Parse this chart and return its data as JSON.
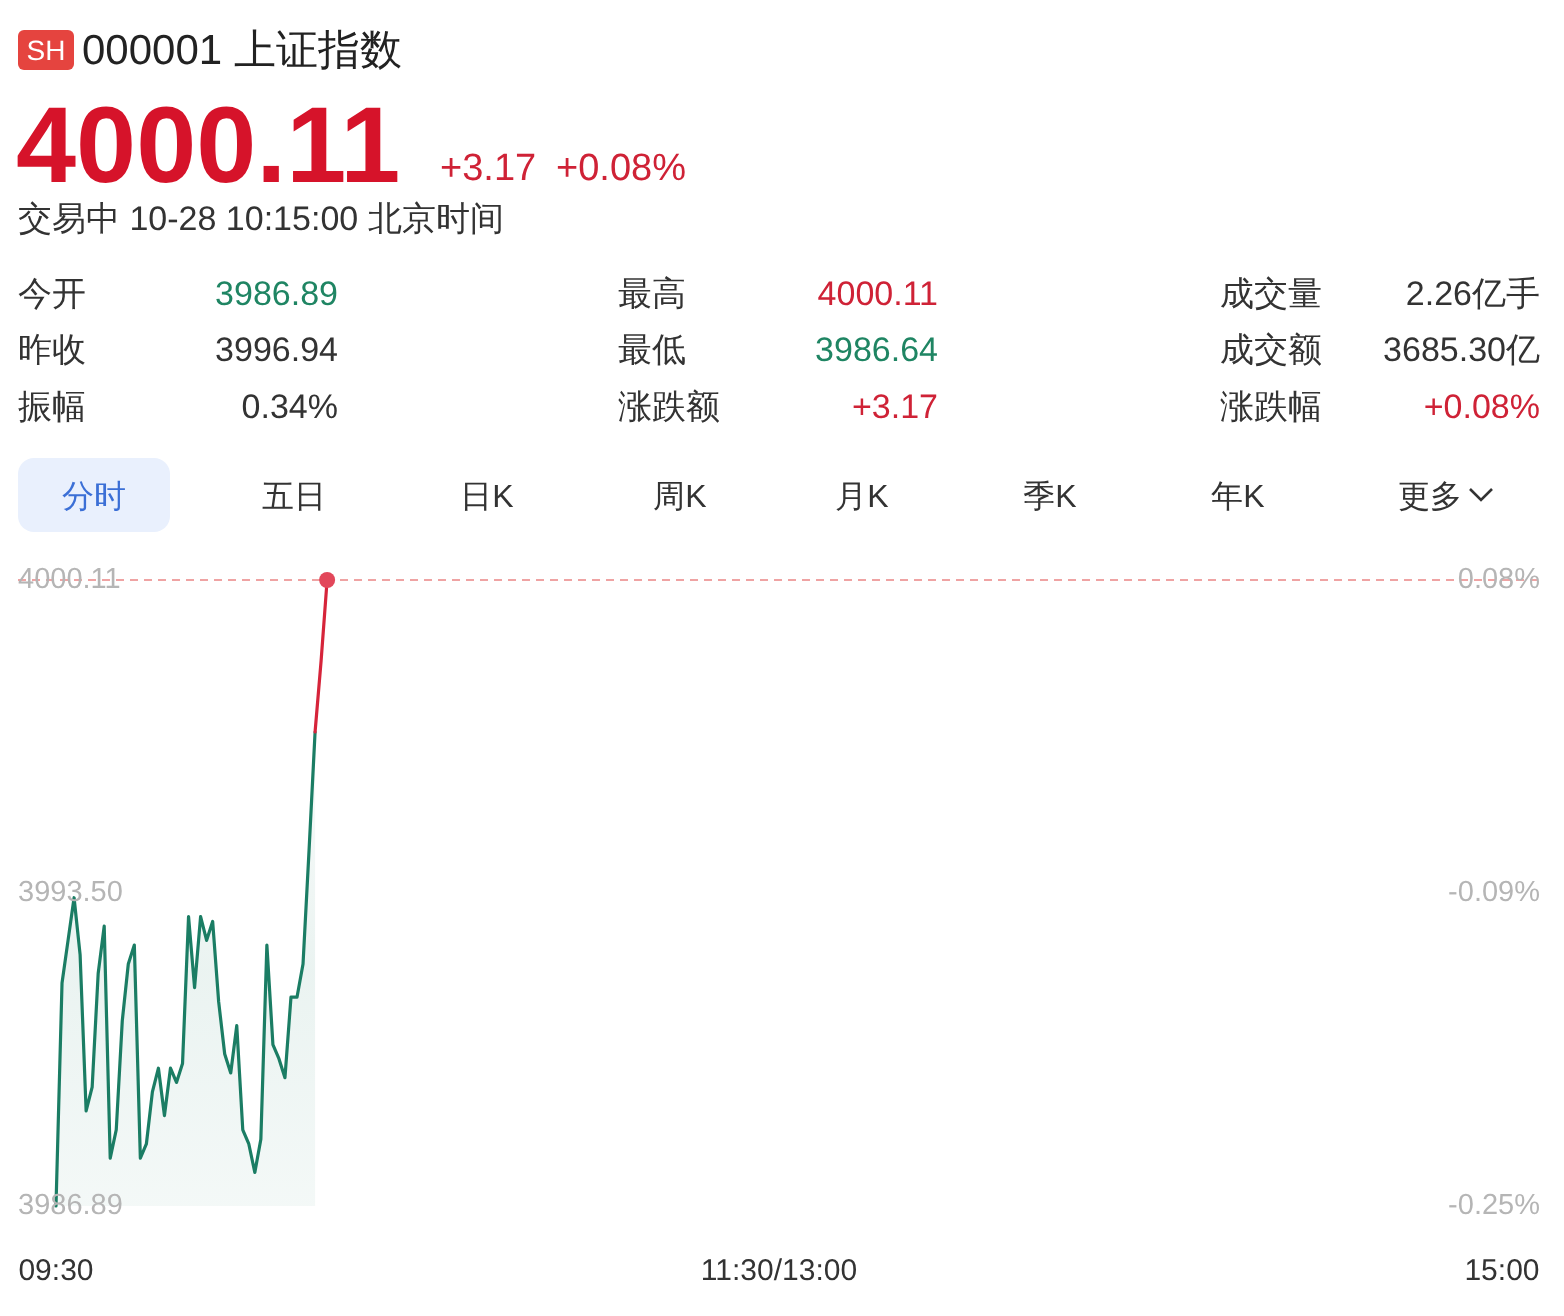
{
  "chart_data": {
    "type": "line",
    "title": "000001 上证指数",
    "subtitle": "交易中 10-28 10:15:00 北京时间",
    "annotations": [
      "SH",
      "4000.11",
      "+3.17",
      "+0.08%",
      "今开",
      "3986.89",
      "最高",
      "4000.11",
      "成交量",
      "2.26亿手",
      "昨收",
      "3996.94",
      "最低",
      "3986.64",
      "成交额",
      "3685.30亿",
      "振幅",
      "0.34%",
      "涨跌额",
      "+3.17",
      "涨跌幅",
      "+0.08%",
      "分时",
      "五日",
      "日K",
      "周K",
      "月K",
      "季K",
      "年K",
      "更多"
    ],
    "categories": [
      "09:30",
      null,
      null,
      null,
      null,
      null,
      null,
      null,
      null,
      null,
      null,
      null,
      null,
      null,
      null,
      null,
      null,
      null,
      null,
      null,
      null,
      null,
      null,
      null,
      null,
      null,
      null,
      null,
      null,
      null,
      null,
      null,
      null,
      null,
      null,
      null,
      null,
      null,
      null,
      null,
      null,
      null,
      null,
      null,
      null,
      null,
      null,
      null,
      null,
      null,
      null,
      null,
      null,
      null,
      null,
      null,
      null,
      null,
      null,
      null,
      null,
      null,
      null,
      null,
      null,
      null,
      null,
      null,
      null,
      null,
      null,
      null,
      null,
      null,
      null,
      null,
      null,
      null,
      null,
      null,
      null,
      null,
      null,
      null,
      null,
      null,
      null,
      null,
      null,
      null,
      null,
      null,
      null,
      null,
      null,
      null,
      null,
      null,
      null,
      null,
      null,
      null,
      null,
      null,
      null,
      null,
      null,
      null,
      null,
      null,
      null,
      null,
      null,
      null,
      null,
      null,
      null,
      null,
      null,
      null,
      "11:30/13:00",
      null,
      null,
      null,
      null,
      null,
      null,
      null,
      null,
      null,
      null,
      null,
      null,
      null,
      null,
      null,
      null,
      null,
      null,
      null,
      null,
      null,
      null,
      null,
      null,
      null,
      null,
      null,
      null,
      null,
      null,
      null,
      null,
      null,
      null,
      null,
      null,
      null,
      null,
      null,
      null,
      null,
      null,
      null,
      null,
      null,
      null,
      null,
      null,
      null,
      null,
      null,
      null,
      null,
      null,
      null,
      null,
      null,
      null,
      null,
      null,
      null,
      null,
      null,
      null,
      null,
      null,
      null,
      null,
      null,
      null,
      null,
      null,
      null,
      null,
      null,
      null,
      null,
      null,
      null,
      null,
      null,
      null,
      null,
      null,
      null,
      null,
      null,
      null,
      null,
      null,
      null,
      null,
      null,
      null,
      null,
      null,
      null,
      null,
      null,
      null,
      null,
      null,
      null,
      null,
      null,
      null,
      null,
      null,
      null,
      null,
      null,
      null,
      null,
      null,
      null,
      null,
      null,
      null,
      null,
      "15:00"
    ],
    "ylim": [
      3986.89,
      4000.11
    ],
    "yticks": [
      3986.89,
      {
        "value": 3993.5,
        "label": "3993.50"
      },
      4000.11
    ],
    "y2lim": [
      -0.2514,
      0.0793
    ],
    "y2ticks": [
      {
        "value": -0.2514,
        "label": "-0.25%"
      },
      {
        "value": -0.0861,
        "label": "-0.09%"
      },
      {
        "value": 0.0793,
        "label": "0.08%"
      }
    ],
    "series": [
      {
        "type": "area",
        "color": "#1b7d64",
        "values": [
          3986.89,
          3991.6,
          3992.5,
          3993.4,
          3992.2,
          3988.9,
          3989.4,
          3991.8,
          3992.8,
          3987.9,
          3988.5,
          3990.8,
          3992.0,
          3992.4,
          3987.9,
          3988.2,
          3989.3,
          3989.8,
          3988.8,
          3989.8,
          3989.5,
          3989.9,
          3993.0,
          3991.5,
          3993.0,
          3992.5,
          3992.9,
          3991.2,
          3990.1,
          3989.7,
          3990.7,
          3988.5,
          3988.2,
          3987.6,
          3988.3,
          3992.4,
          3990.3,
          3990.0,
          3989.6,
          3991.3,
          3991.3,
          3992.0,
          3994.4,
          3996.9,
          null,
          null,
          null,
          null,
          null,
          null,
          null,
          null,
          null,
          null,
          null,
          null,
          null,
          null,
          null,
          null,
          null,
          null,
          null,
          null,
          null,
          null,
          null,
          null,
          null,
          null,
          null,
          null,
          null,
          null,
          null,
          null,
          null,
          null,
          null,
          null,
          null,
          null,
          null,
          null,
          null,
          null,
          null,
          null,
          null,
          null,
          null,
          null,
          null,
          null,
          null,
          null,
          null,
          null,
          null,
          null,
          null,
          null,
          null,
          null,
          null,
          null,
          null,
          null,
          null,
          null,
          null,
          null,
          null,
          null,
          null,
          null,
          null,
          null,
          null,
          null,
          null,
          null,
          null,
          null,
          null,
          null,
          null,
          null,
          null,
          null,
          null,
          null,
          null,
          null,
          null,
          null,
          null,
          null,
          null,
          null,
          null,
          null,
          null,
          null,
          null,
          null,
          null,
          null,
          null,
          null,
          null,
          null,
          null,
          null,
          null,
          null,
          null,
          null,
          null,
          null,
          null,
          null,
          null,
          null,
          null,
          null,
          null,
          null,
          null,
          null,
          null,
          null,
          null,
          null,
          null,
          null,
          null,
          null,
          null,
          null,
          null,
          null,
          null,
          null,
          null,
          null,
          null,
          null,
          null,
          null,
          null,
          null,
          null,
          null,
          null,
          null,
          null,
          null,
          null,
          null,
          null,
          null,
          null,
          null,
          null,
          null,
          null,
          null,
          null,
          null,
          null,
          null,
          null,
          null,
          null,
          null,
          null,
          null,
          null,
          null,
          null,
          null,
          null,
          null,
          null,
          null,
          null,
          null,
          null,
          null,
          null,
          null,
          null,
          null,
          null,
          null,
          null,
          null,
          null,
          null,
          null
        ]
      },
      {
        "color": "#d6243a",
        "values": [
          null,
          null,
          null,
          null,
          null,
          null,
          null,
          null,
          null,
          null,
          null,
          null,
          null,
          null,
          null,
          null,
          null,
          null,
          null,
          null,
          null,
          null,
          null,
          null,
          null,
          null,
          null,
          null,
          null,
          null,
          null,
          null,
          null,
          null,
          null,
          null,
          null,
          null,
          null,
          null,
          null,
          null,
          null,
          3996.9,
          3998.4,
          4000.11,
          null,
          null,
          null,
          null,
          null,
          null,
          null,
          null,
          null,
          null,
          null,
          null,
          null,
          null,
          null,
          null,
          null,
          null,
          null,
          null,
          null,
          null,
          null,
          null,
          null,
          null,
          null,
          null,
          null,
          null,
          null,
          null,
          null,
          null,
          null,
          null,
          null,
          null,
          null,
          null,
          null,
          null,
          null,
          null,
          null,
          null,
          null,
          null,
          null,
          null,
          null,
          null,
          null,
          null,
          null,
          null,
          null,
          null,
          null,
          null,
          null,
          null,
          null,
          null,
          null,
          null,
          null,
          null,
          null,
          null,
          null,
          null,
          null,
          null,
          null,
          null,
          null,
          null,
          null,
          null,
          null,
          null,
          null,
          null,
          null,
          null,
          null,
          null,
          null,
          null,
          null,
          null,
          null,
          null,
          null,
          null,
          null,
          null,
          null,
          null,
          null,
          null,
          null,
          null,
          null,
          null,
          null,
          null,
          null,
          null,
          null,
          null,
          null,
          null,
          null,
          null,
          null,
          null,
          null,
          null,
          null,
          null,
          null,
          null,
          null,
          null,
          null,
          null,
          null,
          null,
          null,
          null,
          null,
          null,
          null,
          null,
          null,
          null,
          null,
          null,
          null,
          null,
          null,
          null,
          null,
          null,
          null,
          null,
          null,
          null,
          null,
          null,
          null,
          null,
          null,
          null,
          null,
          null,
          null,
          null,
          null,
          null,
          null,
          null,
          null,
          null,
          null,
          null,
          null,
          null,
          null,
          null,
          null,
          null,
          null,
          null,
          null,
          null,
          null,
          null,
          null,
          null,
          null,
          null,
          null,
          null,
          null,
          null,
          null,
          null,
          null,
          null,
          null,
          null,
          null
        ]
      },
      {
        "type": "scatter",
        "color": "#e2475a",
        "marker": "circle",
        "values": [
          null,
          null,
          null,
          null,
          null,
          null,
          null,
          null,
          null,
          null,
          null,
          null,
          null,
          null,
          null,
          null,
          null,
          null,
          null,
          null,
          null,
          null,
          null,
          null,
          null,
          null,
          null,
          null,
          null,
          null,
          null,
          null,
          null,
          null,
          null,
          null,
          null,
          null,
          null,
          null,
          null,
          null,
          null,
          null,
          null,
          4000.11,
          null,
          null,
          null,
          null,
          null,
          null,
          null,
          null,
          null,
          null,
          null,
          null,
          null,
          null,
          null,
          null,
          null,
          null,
          null,
          null,
          null,
          null,
          null,
          null,
          null,
          null,
          null,
          null,
          null,
          null,
          null,
          null,
          null,
          null,
          null,
          null,
          null,
          null,
          null,
          null,
          null,
          null,
          null,
          null,
          null,
          null,
          null,
          null,
          null,
          null,
          null,
          null,
          null,
          null,
          null,
          null,
          null,
          null,
          null,
          null,
          null,
          null,
          null,
          null,
          null,
          null,
          null,
          null,
          null,
          null,
          null,
          null,
          null,
          null,
          null,
          null,
          null,
          null,
          null,
          null,
          null,
          null,
          null,
          null,
          null,
          null,
          null,
          null,
          null,
          null,
          null,
          null,
          null,
          null,
          null,
          null,
          null,
          null,
          null,
          null,
          null,
          null,
          null,
          null,
          null,
          null,
          null,
          null,
          null,
          null,
          null,
          null,
          null,
          null,
          null,
          null,
          null,
          null,
          null,
          null,
          null,
          null,
          null,
          null,
          null,
          null,
          null,
          null,
          null,
          null,
          null,
          null,
          null,
          null,
          null,
          null,
          null,
          null,
          null,
          null,
          null,
          null,
          null,
          null,
          null,
          null,
          null,
          null,
          null,
          null,
          null,
          null,
          null,
          null,
          null,
          null,
          null,
          null,
          null,
          null,
          null,
          null,
          null,
          null,
          null,
          null,
          null,
          null,
          null,
          null,
          null,
          null,
          null,
          null,
          null,
          null,
          null,
          null,
          null,
          null,
          null,
          null,
          null,
          null,
          null,
          null,
          null,
          null,
          null,
          null,
          null,
          null,
          null,
          null,
          null
        ]
      }
    ],
    "ref_lines": [
      {
        "axis": "y",
        "value": 4000.11,
        "color": "#efa3a3",
        "line_style": "dashed"
      }
    ]
  }
}
